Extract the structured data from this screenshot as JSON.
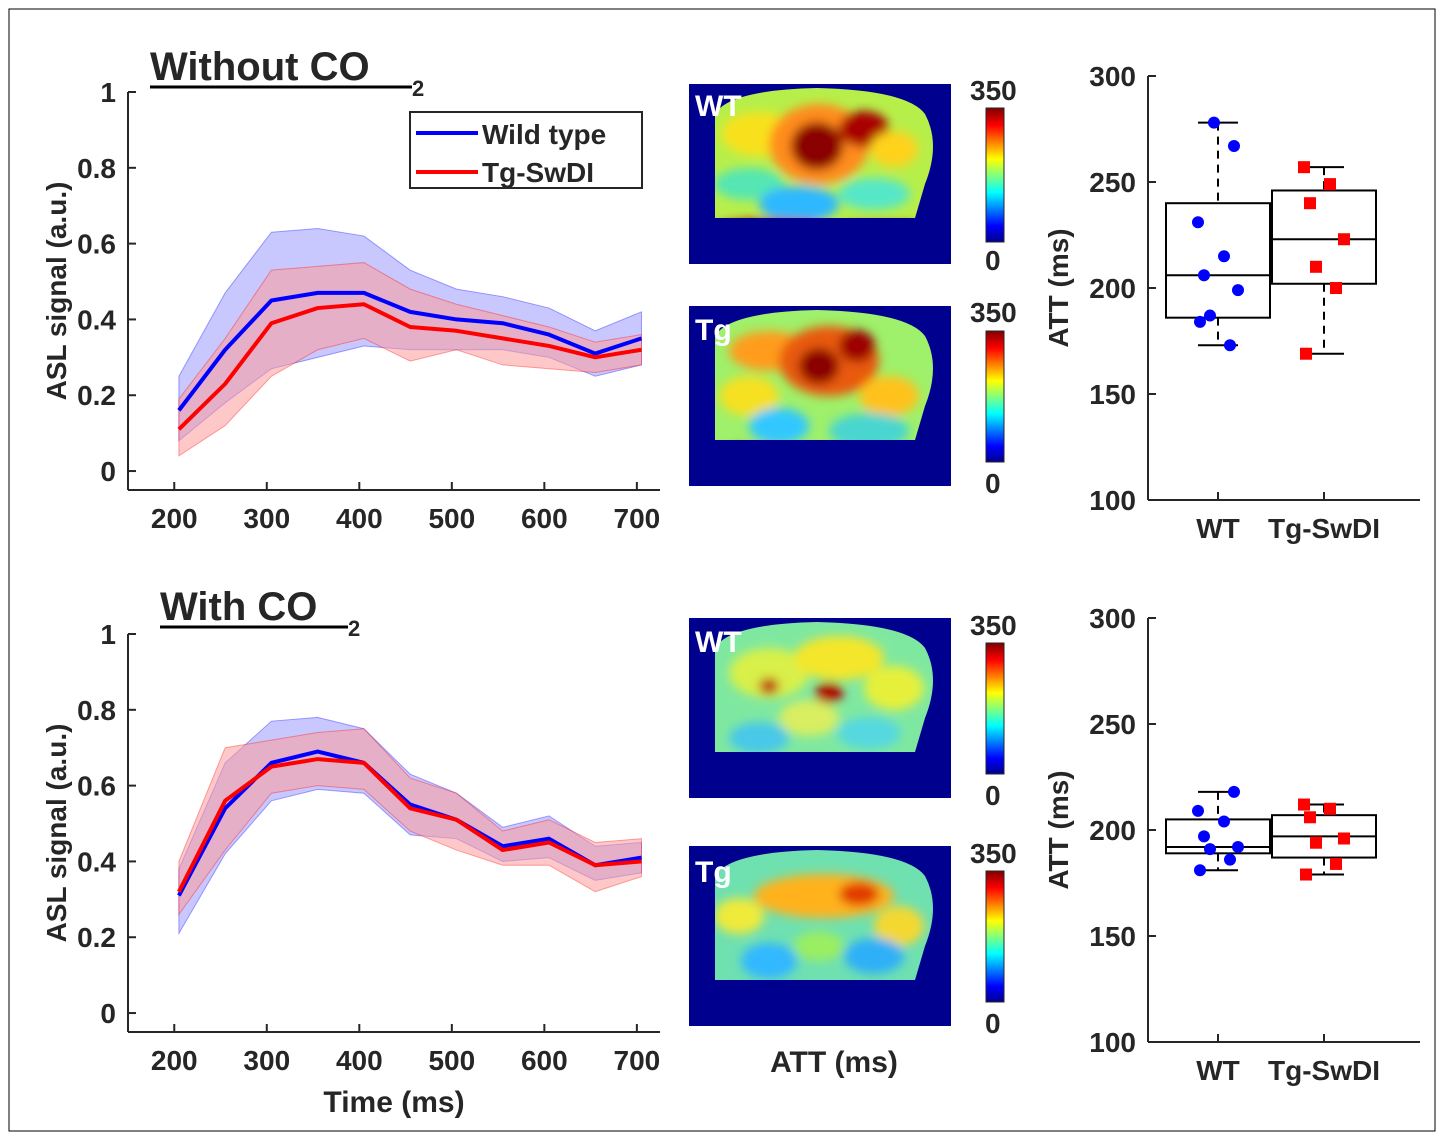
{
  "colors": {
    "wt": "#0000ff",
    "tg": "#ff0000",
    "wt_band": "#9a9aff",
    "tg_band": "#ff9a9a",
    "map_background": "#00008f"
  },
  "panels": {
    "top": {
      "title_main": "Without CO",
      "title_sub": "2"
    },
    "bottom": {
      "title_main": "With CO",
      "title_sub": "2"
    }
  },
  "map_labels": {
    "wt": "WT",
    "tg": "Tg",
    "colorbar_max": "350",
    "colorbar_min": "0",
    "xlabel": "ATT (ms)"
  },
  "chart_data": [
    {
      "id": "signal-top",
      "type": "line",
      "title": "Without CO2",
      "xlabel": "",
      "ylabel": "ASL signal (a.u.)",
      "xlim": [
        150,
        725
      ],
      "ylim": [
        -0.05,
        1
      ],
      "xticks": [
        "200",
        "300",
        "400",
        "500",
        "600",
        "700"
      ],
      "yticks": [
        "0",
        "0.2",
        "0.4",
        "0.6",
        "0.8",
        "1"
      ],
      "legend": "top-right",
      "x": [
        205,
        255,
        305,
        355,
        405,
        455,
        505,
        555,
        605,
        655,
        705
      ],
      "series": [
        {
          "name": "Wild type",
          "color": "#0000ff",
          "values": [
            0.16,
            0.32,
            0.45,
            0.47,
            0.47,
            0.42,
            0.4,
            0.39,
            0.36,
            0.31,
            0.35
          ],
          "upper": [
            0.25,
            0.47,
            0.63,
            0.64,
            0.62,
            0.53,
            0.48,
            0.46,
            0.43,
            0.37,
            0.42
          ],
          "lower": [
            0.08,
            0.18,
            0.27,
            0.3,
            0.33,
            0.32,
            0.32,
            0.32,
            0.3,
            0.25,
            0.28
          ]
        },
        {
          "name": "Tg-SwDI",
          "color": "#ff0000",
          "values": [
            0.11,
            0.23,
            0.39,
            0.43,
            0.44,
            0.38,
            0.37,
            0.35,
            0.33,
            0.3,
            0.32
          ],
          "upper": [
            0.19,
            0.35,
            0.53,
            0.54,
            0.55,
            0.48,
            0.44,
            0.41,
            0.38,
            0.34,
            0.36
          ],
          "lower": [
            0.04,
            0.12,
            0.25,
            0.32,
            0.35,
            0.29,
            0.32,
            0.28,
            0.27,
            0.26,
            0.28
          ]
        }
      ]
    },
    {
      "id": "signal-bottom",
      "type": "line",
      "title": "With CO2",
      "xlabel": "Time (ms)",
      "ylabel": "ASL signal (a.u.)",
      "xlim": [
        150,
        725
      ],
      "ylim": [
        -0.05,
        1
      ],
      "xticks": [
        "200",
        "300",
        "400",
        "500",
        "600",
        "700"
      ],
      "yticks": [
        "0",
        "0.2",
        "0.4",
        "0.6",
        "0.8",
        "1"
      ],
      "x": [
        205,
        255,
        305,
        355,
        405,
        455,
        505,
        555,
        605,
        655,
        705
      ],
      "series": [
        {
          "name": "Wild type",
          "color": "#0000ff",
          "values": [
            0.31,
            0.54,
            0.66,
            0.69,
            0.66,
            0.55,
            0.51,
            0.44,
            0.46,
            0.39,
            0.41
          ],
          "upper": [
            0.38,
            0.66,
            0.77,
            0.78,
            0.75,
            0.63,
            0.58,
            0.49,
            0.52,
            0.44,
            0.45
          ],
          "lower": [
            0.21,
            0.42,
            0.56,
            0.59,
            0.58,
            0.47,
            0.46,
            0.4,
            0.41,
            0.35,
            0.37
          ]
        },
        {
          "name": "Tg-SwDI",
          "color": "#ff0000",
          "values": [
            0.32,
            0.56,
            0.65,
            0.67,
            0.66,
            0.54,
            0.51,
            0.43,
            0.45,
            0.39,
            0.4
          ],
          "upper": [
            0.4,
            0.7,
            0.72,
            0.74,
            0.75,
            0.62,
            0.58,
            0.48,
            0.51,
            0.45,
            0.46
          ],
          "lower": [
            0.26,
            0.43,
            0.58,
            0.6,
            0.59,
            0.48,
            0.43,
            0.39,
            0.39,
            0.32,
            0.36
          ]
        }
      ]
    },
    {
      "id": "att-top",
      "type": "box",
      "ylabel": "ATT (ms)",
      "ylim": [
        100,
        300
      ],
      "yticks": [
        "100",
        "150",
        "200",
        "250",
        "300"
      ],
      "categories": [
        "WT",
        "Tg-SwDI"
      ],
      "series": [
        {
          "name": "WT",
          "color": "#0000ff",
          "box": {
            "min": 173,
            "q1": 186,
            "median": 206,
            "q3": 240,
            "max": 278
          },
          "points": [
            184,
            173,
            187,
            199,
            206,
            215,
            231,
            267,
            278
          ]
        },
        {
          "name": "Tg-SwDI",
          "color": "#ff0000",
          "box": {
            "min": 169,
            "q1": 202,
            "median": 223,
            "q3": 246,
            "max": 257
          },
          "points": [
            169,
            200,
            210,
            223,
            240,
            249,
            257
          ]
        }
      ]
    },
    {
      "id": "att-bottom",
      "type": "box",
      "ylabel": "ATT (ms)",
      "ylim": [
        100,
        300
      ],
      "yticks": [
        "100",
        "150",
        "200",
        "250",
        "300"
      ],
      "categories": [
        "WT",
        "Tg-SwDI"
      ],
      "series": [
        {
          "name": "WT",
          "color": "#0000ff",
          "box": {
            "min": 181,
            "q1": 189,
            "median": 192,
            "q3": 205,
            "max": 218
          },
          "points": [
            181,
            186,
            191,
            192,
            197,
            204,
            209,
            218
          ]
        },
        {
          "name": "Tg-SwDI",
          "color": "#ff0000",
          "box": {
            "min": 179,
            "q1": 187,
            "median": 197,
            "q3": 207,
            "max": 212
          },
          "points": [
            179,
            184,
            194,
            196,
            206,
            210,
            212
          ]
        }
      ]
    }
  ]
}
